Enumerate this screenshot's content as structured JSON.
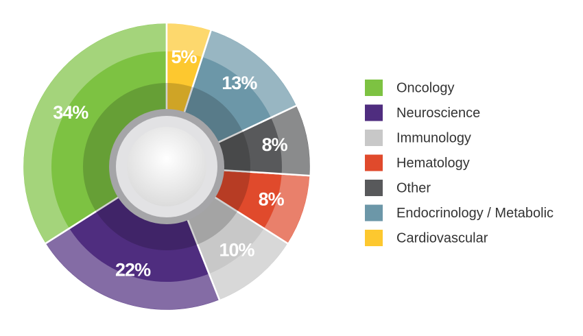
{
  "chart_data": {
    "type": "pie",
    "categories": [
      "Oncology",
      "Neuroscience",
      "Immunology",
      "Hematology",
      "Other",
      "Endocrinology / Metabolic",
      "Cardiovascular"
    ],
    "values": [
      34,
      22,
      10,
      8,
      8,
      13,
      5
    ],
    "value_labels": [
      "34%",
      "22%",
      "10%",
      "8%",
      "8%",
      "13%",
      "5%"
    ],
    "colors": [
      "#7dc242",
      "#4f2d7f",
      "#c8c8c8",
      "#e04a2c",
      "#58595b",
      "#6c97a8",
      "#fdc82f"
    ],
    "legend": "right"
  }
}
